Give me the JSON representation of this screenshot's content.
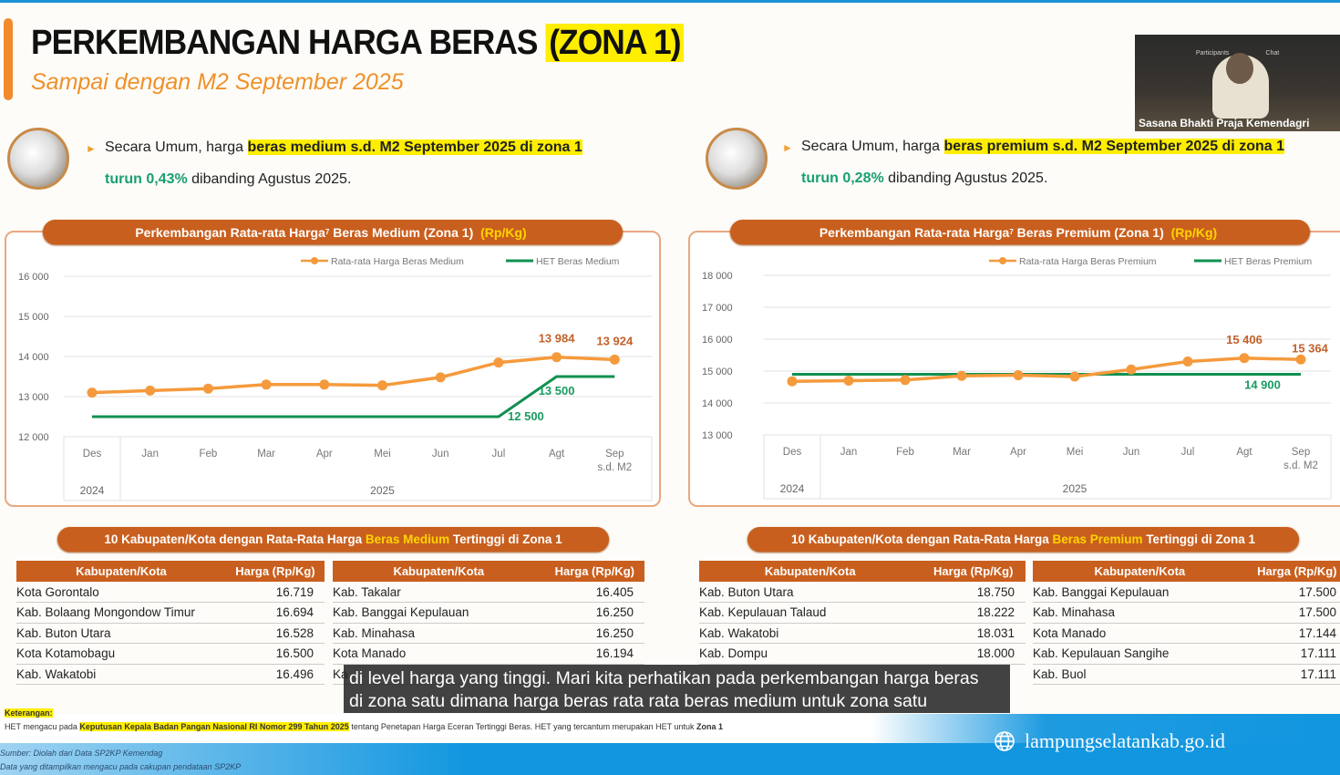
{
  "header": {
    "title": "PERKEMBANGAN HARGA BERAS",
    "title_zone": "(ZONA 1)",
    "subtitle": "Sampai dengan M2 September 2025"
  },
  "video": {
    "caption": "Sasana Bhakti Praja  Kemendagri",
    "toolbar": [
      "Participants",
      "Chat"
    ]
  },
  "summary_medium": {
    "prefix": "Secara Umum, harga ",
    "highlight": "beras medium s.d. M2 September 2025 di zona 1",
    "change": "turun 0,43%",
    "suffix": " dibanding Agustus 2025."
  },
  "summary_premium": {
    "prefix": "Secara Umum, harga ",
    "highlight": "beras premium s.d. M2 September 2025 di zona 1",
    "change": "turun 0,28%",
    "suffix": " dibanding Agustus 2025."
  },
  "chart_data": [
    {
      "type": "line",
      "title": "Perkembangan Rata-rata Harga",
      "title_sup": "7",
      "title_rest": " Beras Medium (Zona 1) ",
      "unit": "(Rp/Kg)",
      "categories": [
        "Des",
        "Jan",
        "Feb",
        "Mar",
        "Apr",
        "Mei",
        "Jun",
        "Jul",
        "Agt",
        "Sep"
      ],
      "last_sub": "s.d. M2",
      "years": [
        "2024",
        "2025"
      ],
      "ylim": [
        12000,
        16000
      ],
      "yticks": [
        "12 000",
        "13 000",
        "14 000",
        "15 000",
        "16 000"
      ],
      "series": [
        {
          "name": "Rata-rata Harga Beras Medium",
          "color": "#f59a3c",
          "values": [
            13100,
            13150,
            13200,
            13300,
            13300,
            13280,
            13480,
            13850,
            13984,
            13924
          ]
        },
        {
          "name": "HET Beras Medium",
          "color": "#109050",
          "values": [
            12500,
            12500,
            12500,
            12500,
            12500,
            12500,
            12500,
            12500,
            13500,
            13500
          ]
        }
      ],
      "labels": [
        {
          "text": "13 984",
          "series": 0,
          "index": 8
        },
        {
          "text": "13 924",
          "series": 0,
          "index": 9
        },
        {
          "text": "12 500",
          "series": 1,
          "index": 7
        },
        {
          "text": "13 500",
          "series": 1,
          "index": 8
        }
      ]
    },
    {
      "type": "line",
      "title": "Perkembangan Rata-rata Harga",
      "title_sup": "7",
      "title_rest": " Beras Premium (Zona 1) ",
      "unit": "(Rp/Kg)",
      "categories": [
        "Des",
        "Jan",
        "Feb",
        "Mar",
        "Apr",
        "Mei",
        "Jun",
        "Jul",
        "Agt",
        "Sep"
      ],
      "last_sub": "s.d. M2",
      "years": [
        "2024",
        "2025"
      ],
      "ylim": [
        13000,
        18000
      ],
      "yticks": [
        "13 000",
        "14 000",
        "15 000",
        "16 000",
        "17 000",
        "18 000"
      ],
      "series": [
        {
          "name": "Rata-rata Harga Beras Premium",
          "color": "#f59a3c",
          "values": [
            14680,
            14700,
            14720,
            14850,
            14870,
            14830,
            15050,
            15300,
            15406,
            15364
          ]
        },
        {
          "name": "HET Beras Premium",
          "color": "#109050",
          "values": [
            14900,
            14900,
            14900,
            14900,
            14900,
            14900,
            14900,
            14900,
            14900,
            14900
          ]
        }
      ],
      "labels": [
        {
          "text": "15 406",
          "series": 0,
          "index": 8
        },
        {
          "text": "15 364",
          "series": 0,
          "index": 9
        },
        {
          "text": "14 900",
          "series": 1,
          "index": 8
        }
      ]
    }
  ],
  "medium_table": {
    "title_pre": "10 Kabupaten/Kota dengan Rata-Rata Harga ",
    "title_hl": "Beras Medium",
    "title_post": " Tertinggi di Zona 1",
    "headers": [
      "Kabupaten/Kota",
      "Harga (Rp/Kg)"
    ],
    "left": [
      [
        "Kota Gorontalo",
        "16.719"
      ],
      [
        "Kab. Bolaang Mongondow Timur",
        "16.694"
      ],
      [
        "Kab. Buton Utara",
        "16.528"
      ],
      [
        "Kota Kotamobagu",
        "16.500"
      ],
      [
        "Kab. Wakatobi",
        "16.496"
      ]
    ],
    "right": [
      [
        "Kab. Takalar",
        "16.405"
      ],
      [
        "Kab. Banggai Kepulauan",
        "16.250"
      ],
      [
        "Kab. Minahasa",
        "16.250"
      ],
      [
        "Kota Manado",
        "16.194"
      ],
      [
        "Ka",
        ""
      ]
    ]
  },
  "premium_table": {
    "title_pre": "10 Kabupaten/Kota dengan Rata-Rata Harga ",
    "title_hl": "Beras Premium",
    "title_post": " Tertinggi di Zona 1",
    "headers": [
      "Kabupaten/Kota",
      "Harga (Rp/Kg)"
    ],
    "left": [
      [
        "Kab. Buton Utara",
        "18.750"
      ],
      [
        "Kab. Kepulauan Talaud",
        "18.222"
      ],
      [
        "Kab. Wakatobi",
        "18.031"
      ],
      [
        "Kab. Dompu",
        "18.000"
      ]
    ],
    "right": [
      [
        "Kab. Banggai Kepulauan",
        "17.500"
      ],
      [
        "Kab. Minahasa",
        "17.500"
      ],
      [
        "Kota Manado",
        "17.144"
      ],
      [
        "Kab. Kepulauan Sangihe",
        "17.111"
      ],
      [
        "Kab. Buol",
        "17.111"
      ]
    ]
  },
  "caption": {
    "line1": "di level harga yang tinggi. Mari kita perhatikan pada perkembangan harga beras",
    "line2": "di zona satu dimana harga beras rata rata beras medium untuk zona satu"
  },
  "notes": {
    "label": "Keterangan:",
    "het_pre": "HET mengacu pada ",
    "het_hl": "Keputusan Kepala Badan Pangan Nasional RI Nomor 299 Tahun 2025",
    "het_post": " tentang Penetapan Harga Eceran Tertinggi Beras. HET yang tercantum merupakan HET untuk ",
    "het_zone": "Zona 1",
    "source1": "Sumber: Diolah dari Data SP2KP Kemendag",
    "source2": "Data yang ditampilkan mengacu pada cakupan pendataan SP2KP"
  },
  "footer": {
    "site": "lampungselatankab.go.id"
  }
}
